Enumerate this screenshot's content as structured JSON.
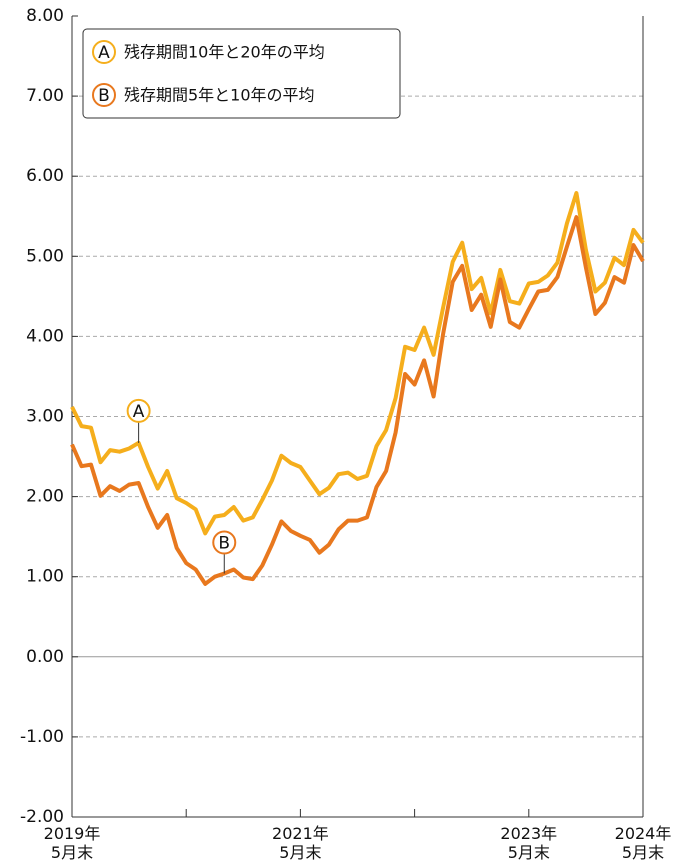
{
  "chart_data": {
    "type": "line",
    "categories": [
      "2019年\n5月末",
      null,
      null,
      null,
      null,
      null,
      null,
      null,
      null,
      null,
      null,
      null,
      null,
      null,
      null,
      null,
      null,
      null,
      null,
      null,
      null,
      null,
      null,
      null,
      "2021年\n5月末",
      null,
      null,
      null,
      null,
      null,
      null,
      null,
      null,
      null,
      null,
      null,
      null,
      null,
      null,
      null,
      null,
      null,
      null,
      null,
      null,
      null,
      null,
      null,
      "2023年\n5月末",
      null,
      null,
      null,
      null,
      null,
      null,
      null,
      null,
      null,
      null,
      null,
      "2024年\n5月末"
    ],
    "series": [
      {
        "name": "残存期間10年と20年の平均",
        "label": "A",
        "color": "#f5ae1c",
        "values": [
          3.12,
          2.88,
          2.86,
          2.43,
          2.58,
          2.56,
          2.6,
          2.67,
          2.37,
          2.1,
          2.32,
          1.98,
          1.92,
          1.84,
          1.54,
          1.75,
          1.77,
          1.87,
          1.7,
          1.74,
          1.96,
          2.2,
          2.51,
          2.42,
          2.37,
          2.2,
          2.03,
          2.11,
          2.28,
          2.3,
          2.22,
          2.26,
          2.63,
          2.83,
          3.23,
          3.87,
          3.83,
          4.11,
          3.77,
          4.36,
          4.93,
          5.17,
          4.59,
          4.73,
          4.29,
          4.83,
          4.44,
          4.41,
          4.66,
          4.68,
          4.76,
          4.92,
          5.41,
          5.79,
          5.08,
          4.56,
          4.67,
          4.98,
          4.89,
          5.33,
          5.17
        ]
      },
      {
        "name": "残存期間5年と10年の平均",
        "label": "B",
        "color": "#e8781e",
        "values": [
          2.65,
          2.38,
          2.4,
          2.01,
          2.13,
          2.07,
          2.15,
          2.17,
          1.87,
          1.61,
          1.77,
          1.36,
          1.17,
          1.09,
          0.91,
          1.0,
          1.04,
          1.09,
          0.99,
          0.97,
          1.14,
          1.4,
          1.69,
          1.57,
          1.51,
          1.46,
          1.3,
          1.4,
          1.59,
          1.7,
          1.7,
          1.74,
          2.12,
          2.32,
          2.8,
          3.53,
          3.4,
          3.7,
          3.25,
          4.03,
          4.68,
          4.88,
          4.33,
          4.52,
          4.12,
          4.71,
          4.18,
          4.11,
          4.34,
          4.56,
          4.58,
          4.74,
          5.12,
          5.49,
          4.86,
          4.28,
          4.42,
          4.74,
          4.67,
          5.14,
          4.94
        ]
      }
    ],
    "ylim": [
      -2,
      8
    ],
    "yticks": [
      {
        "value": -2,
        "label": "-2.00"
      },
      {
        "value": -1,
        "label": "-1.00"
      },
      {
        "value": 0,
        "label": "0.00"
      },
      {
        "value": 1,
        "label": "1.00"
      },
      {
        "value": 2,
        "label": "2.00"
      },
      {
        "value": 3,
        "label": "3.00"
      },
      {
        "value": 4,
        "label": "4.00"
      },
      {
        "value": 5,
        "label": "5.00"
      },
      {
        "value": 6,
        "label": "6.00"
      },
      {
        "value": 7,
        "label": "7.00"
      },
      {
        "value": 8,
        "label": "8.00"
      }
    ],
    "grid": true,
    "legend": "top-left"
  }
}
